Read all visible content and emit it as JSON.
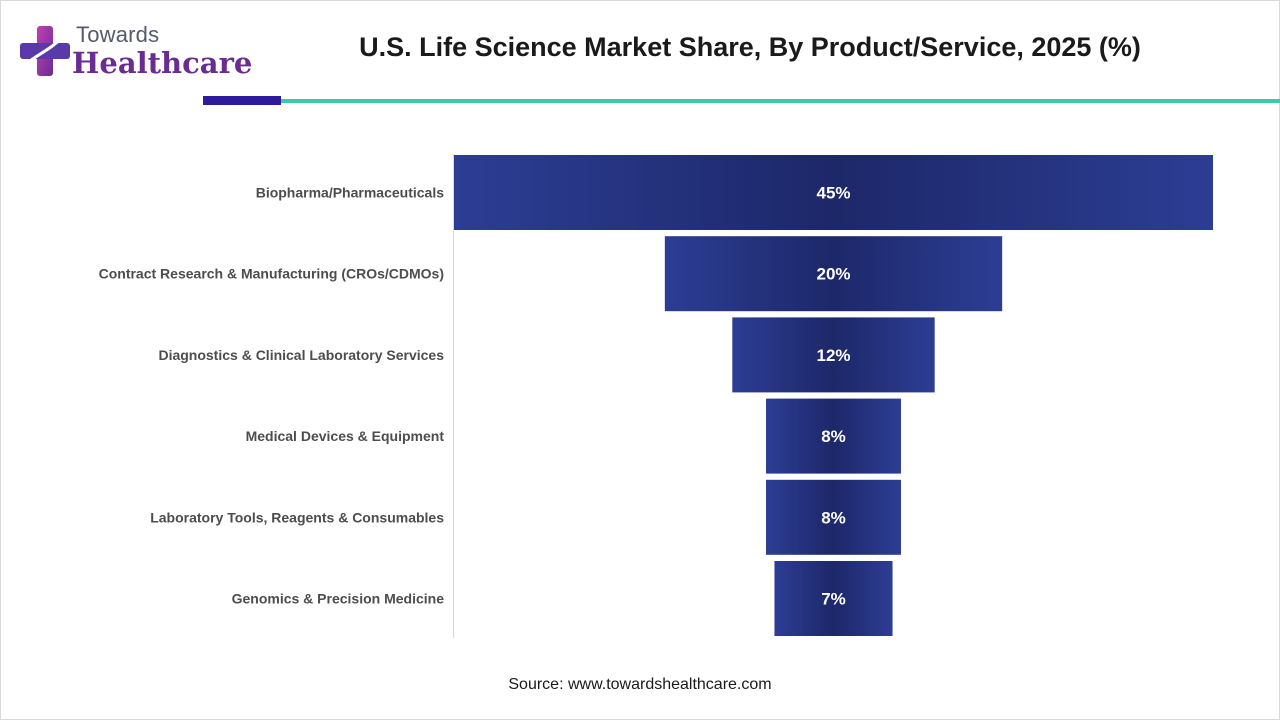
{
  "logo": {
    "line1": "Towards",
    "line2": "Healthcare",
    "icon": "plus-cross-icon"
  },
  "header": {
    "title": "U.S. Life Science Market Share, By Product/Service, 2025 (%)"
  },
  "source": "Source: www.towardshealthcare.com",
  "colors": {
    "bar": "#27358a",
    "barCenter": "#1d2869",
    "accent": "#2e1a9c",
    "teal": "#3ccaa8",
    "brand": "#6a2c91"
  },
  "chart_data": {
    "type": "bar",
    "orientation": "horizontal-funnel",
    "title": "U.S. Life Science Market Share, By Product/Service, 2025 (%)",
    "categories": [
      "Biopharma/Pharmaceuticals",
      "Contract Research & Manufacturing (CROs/CDMOs)",
      "Diagnostics & Clinical Laboratory Services",
      "Medical Devices & Equipment",
      "Laboratory Tools, Reagents & Consumables",
      "Genomics & Precision Medicine"
    ],
    "values": [
      45,
      20,
      12,
      8,
      8,
      7
    ],
    "labels": [
      "45%",
      "20%",
      "12%",
      "8%",
      "8%",
      "7%"
    ],
    "unit": "%"
  }
}
